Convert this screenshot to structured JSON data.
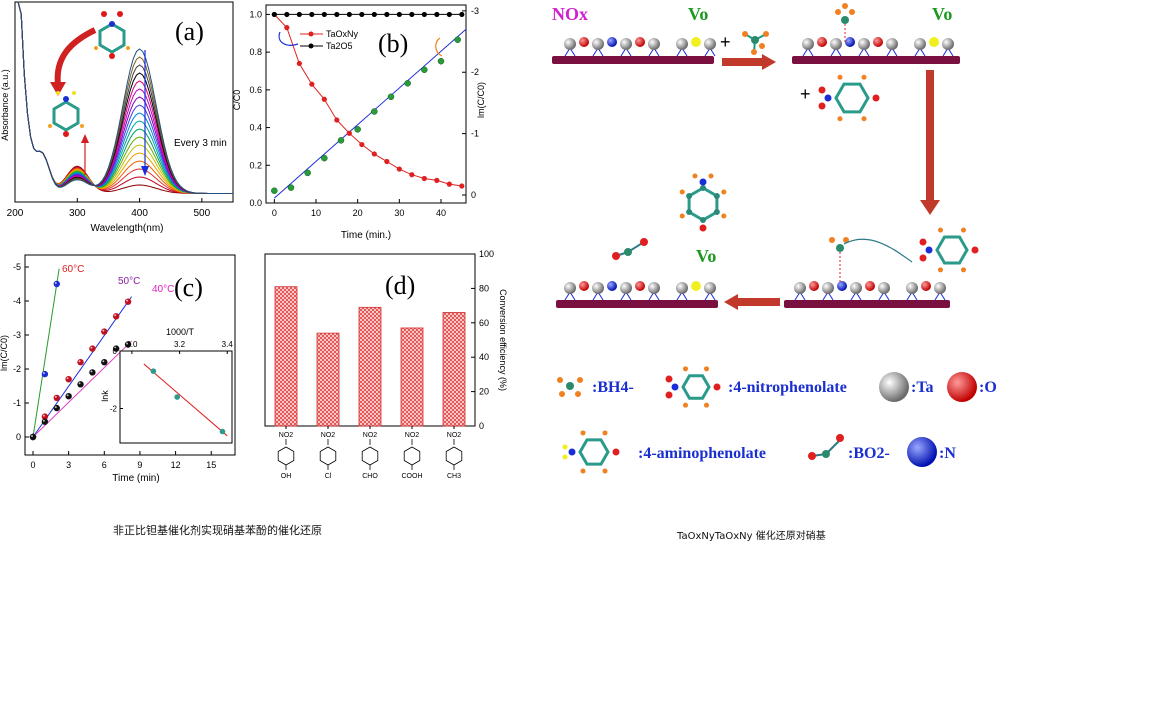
{
  "panels": {
    "a": {
      "label": "(a)",
      "xlabel": "Wavelength(nm)",
      "ylabel": "Absorbance (a.u.)",
      "xticks": [
        "200",
        "300",
        "400",
        "500"
      ],
      "annotation": "Every 3 min"
    },
    "b": {
      "label": "(b)",
      "xlabel": "Time (min.)",
      "ylabel_left": "C/C0",
      "ylabel_right": "lm(C/C0)",
      "xticks": [
        "0",
        "10",
        "20",
        "30",
        "40"
      ],
      "yticks_left": [
        "0.0",
        "0.2",
        "0.4",
        "0.6",
        "0.8",
        "1.0"
      ],
      "yticks_right": [
        "0",
        "-1",
        "-2",
        "-3"
      ],
      "legend": [
        "TaOxNy",
        "Ta2O5"
      ]
    },
    "c": {
      "label": "(c)",
      "xlabel": "Time (min)",
      "ylabel": "lm(C/C0)",
      "xticks": [
        "0",
        "3",
        "6",
        "9",
        "12",
        "15"
      ],
      "yticks": [
        "0",
        "-1",
        "-2",
        "-3",
        "-4",
        "-5"
      ],
      "series_labels": [
        "60°C",
        "50°C",
        "40°C"
      ],
      "inset": {
        "xlabel": "1000/T",
        "ylabel": "lnk",
        "xticks": [
          "3.0",
          "3.2",
          "3.4"
        ],
        "yticks": [
          "0",
          "-2"
        ]
      }
    },
    "d": {
      "label": "(d)",
      "ylabel_right": "Conversion efficiency (%)",
      "yticks": [
        "0",
        "20",
        "40",
        "60",
        "80",
        "100"
      ],
      "substituents": [
        "OH",
        "Cl",
        "CHO",
        "COOH",
        "CH3"
      ],
      "top_group": "NO2"
    }
  },
  "chart_data": [
    {
      "type": "line",
      "panel": "b",
      "xlabel": "Time (min.)",
      "ylabel": "C/C0",
      "xlim": [
        -2,
        46
      ],
      "ylim": [
        0,
        1.05
      ],
      "x": [
        0,
        3,
        6,
        9,
        12,
        15,
        18,
        21,
        24,
        27,
        30,
        33,
        36,
        39,
        42,
        45
      ],
      "series": [
        {
          "name": "TaOxNy",
          "values": [
            1.0,
            0.93,
            0.74,
            0.63,
            0.55,
            0.44,
            0.37,
            0.31,
            0.26,
            0.22,
            0.18,
            0.15,
            0.13,
            0.12,
            0.1,
            0.09
          ]
        },
        {
          "name": "Ta2O5",
          "values": [
            1.0,
            1.0,
            1.0,
            1.0,
            1.0,
            1.0,
            1.0,
            1.0,
            1.0,
            1.0,
            1.0,
            1.0,
            1.0,
            1.0,
            1.0,
            1.0
          ]
        }
      ]
    },
    {
      "type": "scatter",
      "panel": "b-right",
      "ylabel": "lm(C/C0)",
      "ylim": [
        -3,
        0
      ],
      "x": [
        0,
        4,
        8,
        12,
        16,
        20,
        24,
        28,
        32,
        36,
        40,
        44
      ],
      "values": [
        -0.07,
        -0.12,
        -0.36,
        -0.6,
        -0.89,
        -1.07,
        -1.36,
        -1.6,
        -1.82,
        -2.04,
        -2.18,
        -2.53
      ]
    },
    {
      "type": "scatter",
      "panel": "c",
      "xlabel": "Time (min)",
      "ylabel": "lm(C/C0)",
      "xlim": [
        0,
        17
      ],
      "ylim": [
        0,
        -5
      ],
      "series": [
        {
          "name": "60°C",
          "x": [
            0,
            1,
            2
          ],
          "values": [
            0,
            -1.85,
            -4.5
          ]
        },
        {
          "name": "50°C",
          "x": [
            0,
            1,
            2,
            3,
            4,
            5,
            6,
            7,
            8
          ],
          "values": [
            0,
            -0.6,
            -1.15,
            -1.7,
            -2.2,
            -2.6,
            -3.1,
            -3.55,
            -3.98
          ]
        },
        {
          "name": "40°C",
          "x": [
            0,
            1,
            2,
            3,
            4,
            5,
            6,
            7,
            8
          ],
          "values": [
            0,
            -0.45,
            -0.85,
            -1.2,
            -1.55,
            -1.9,
            -2.2,
            -2.6,
            -2.72
          ]
        }
      ]
    },
    {
      "type": "scatter",
      "panel": "c-inset",
      "xlabel": "1000/T",
      "ylabel": "lnk",
      "x": [
        3.09,
        3.19,
        3.38
      ],
      "values": [
        -0.7,
        -1.6,
        -2.8
      ]
    },
    {
      "type": "bar",
      "panel": "d",
      "ylabel": "Conversion efficiency (%)",
      "categories": [
        "OH",
        "Cl",
        "CHO",
        "COOH",
        "CH3"
      ],
      "values": [
        81,
        54,
        69,
        57,
        66
      ],
      "ylim": [
        0,
        100
      ],
      "color": "#e05050"
    }
  ],
  "scheme": {
    "label_nox": "NOx",
    "label_vo": "Vo",
    "legend_rows": [
      [
        ":BH4-",
        ":4-nitrophenolate",
        ":Ta",
        ":O"
      ],
      [
        ":4-aminophenolate",
        ":BO2-",
        ":N"
      ]
    ]
  },
  "captions": {
    "left": "非正比钽基催化剂实现硝基苯酚的催化还原",
    "right": "TaOxNyTaOxNy 催化还原对硝基"
  },
  "colors": {
    "ta_gray": "#8a8a8a",
    "o_red": "#e01818",
    "n_blue": "#1a2ed8",
    "arrow": "#c0392b",
    "substrate": "#7a1040",
    "legend_text": "#1a2fd0"
  }
}
